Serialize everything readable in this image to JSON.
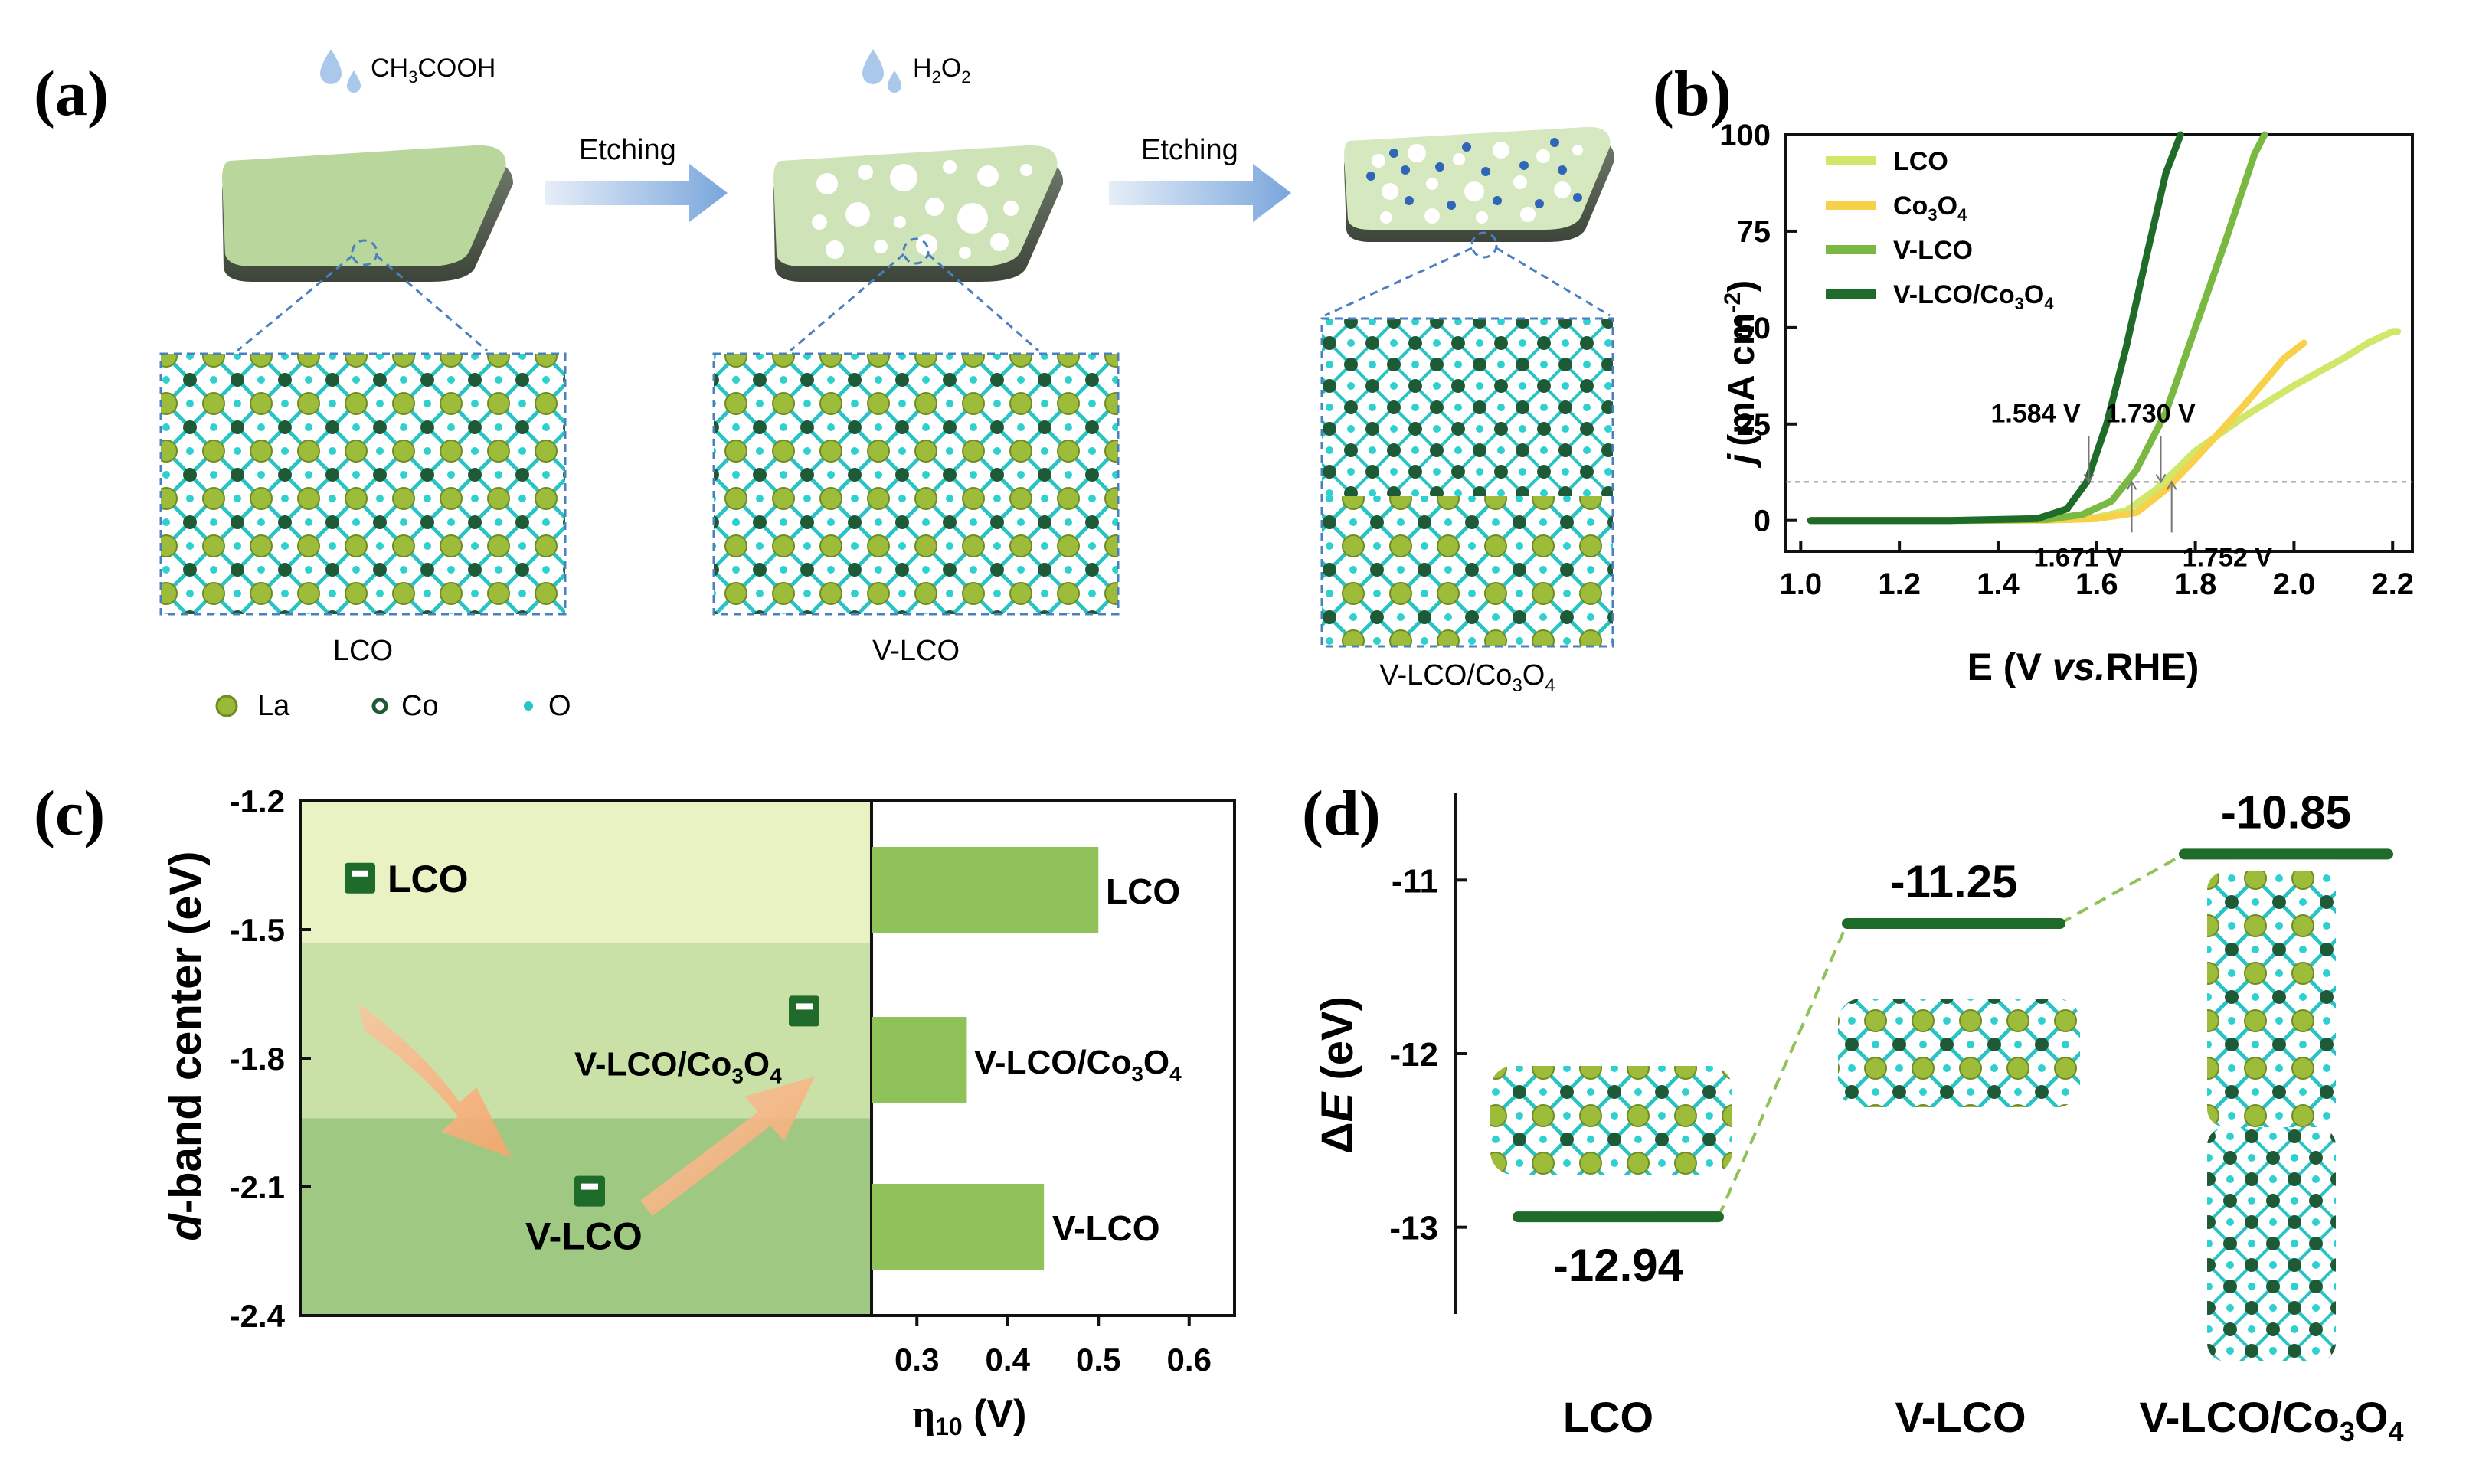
{
  "panels": {
    "a": {
      "letter": "(a)",
      "reagent1": "CH",
      "reagent1_sub": "3",
      "reagent1_rest": "COOH",
      "reagent2": "H",
      "reagent2_sub1": "2",
      "reagent2_mid": "O",
      "reagent2_sub2": "2",
      "arrow1": "Etching",
      "arrow2": "Etching",
      "label1": "LCO",
      "label2": "V-LCO",
      "label3_main": "V-LCO/Co",
      "label3_sub1": "3",
      "label3_mid": "O",
      "label3_sub2": "4",
      "legend": [
        {
          "label": "La",
          "color": "#9ab83a"
        },
        {
          "label": "Co",
          "color": "#1f5a36"
        },
        {
          "label": "O",
          "color": "#26c6c6"
        }
      ]
    },
    "b": {
      "letter": "(b)",
      "ylabel_j": "j",
      "ylabel_rest": "(mA cm",
      "ylabel_sup": "-2",
      "ylabel_end": ")",
      "xlabel_pre": "E (V ",
      "xlabel_it": "vs.",
      "xlabel_post": "RHE)",
      "legend": [
        {
          "label": "LCO",
          "color": "#cfe86a"
        },
        {
          "label": "Co",
          "sub1": "3",
          "mid": "O",
          "sub2": "4",
          "color": "#f7d14a"
        },
        {
          "label": "V-LCO",
          "color": "#79b941"
        },
        {
          "label": "V-LCO/Co",
          "sub1": "3",
          "mid": "O",
          "sub2": "4",
          "color": "#1f6b2a"
        }
      ],
      "annotations": [
        "1.584 V",
        "1.730 V",
        "1.671 V",
        "1.752 V"
      ]
    },
    "c": {
      "letter": "(c)",
      "ylabel_d": "d",
      "ylabel_rest": "-band center (eV)",
      "xlabel": "η",
      "xlabel_sub": "10",
      "xlabel_unit": " (V)",
      "points": [
        {
          "label": "LCO",
          "value": -1.38
        },
        {
          "label_main": "V-LCO/Co",
          "sub1": "3",
          "mid": "O",
          "sub2": "4",
          "value": -1.69
        },
        {
          "label": "V-LCO",
          "value": -2.11
        }
      ],
      "bars": [
        {
          "label": "LCO",
          "value": 0.5
        },
        {
          "label_main": "V-LCO/Co",
          "sub1": "3",
          "mid": "O",
          "sub2": "4",
          "value": 0.355
        },
        {
          "label": "V-LCO",
          "value": 0.44
        }
      ]
    },
    "d": {
      "letter": "(d)",
      "ylabel_delta": "Δ",
      "ylabel_e": "E",
      "ylabel_unit": " (eV)",
      "levels": [
        {
          "value": "-12.94",
          "v": -12.94,
          "label": "LCO"
        },
        {
          "value": "-11.25",
          "v": -11.25,
          "label": "V-LCO"
        },
        {
          "value": "-10.85",
          "v": -10.85,
          "label_main": "V-LCO/Co",
          "sub1": "3",
          "mid": "O",
          "sub2": "4"
        }
      ]
    }
  },
  "chart_data": [
    {
      "type": "line",
      "panel": "b",
      "xlabel": "E (V vs.RHE)",
      "ylabel": "j (mA cm-2)",
      "xlim": [
        0.97,
        2.24
      ],
      "ylim": [
        -8,
        100
      ],
      "xticks": [
        "1.0",
        "1.2",
        "1.4",
        "1.6",
        "1.8",
        "2.0",
        "2.2"
      ],
      "yticks": [
        "0",
        "25",
        "50",
        "75",
        "100"
      ],
      "legend_position": "top-left",
      "series": [
        {
          "name": "LCO",
          "color": "#cfe86a",
          "x": [
            1.02,
            1.3,
            1.5,
            1.6,
            1.66,
            1.72,
            1.8,
            1.9,
            2.0,
            2.1,
            2.15,
            2.2,
            2.21
          ],
          "y": [
            0,
            0,
            0.2,
            0.8,
            2.5,
            8,
            18,
            27,
            35,
            42,
            46,
            49,
            49
          ]
        },
        {
          "name": "Co3O4",
          "color": "#f7d14a",
          "x": [
            1.02,
            1.3,
            1.5,
            1.6,
            1.68,
            1.74,
            1.8,
            1.9,
            1.98,
            2.02
          ],
          "y": [
            0,
            0,
            0.1,
            0.5,
            2,
            8,
            16,
            30,
            42,
            46
          ]
        },
        {
          "name": "V-LCO",
          "color": "#79b941",
          "x": [
            1.02,
            1.3,
            1.5,
            1.57,
            1.63,
            1.68,
            1.74,
            1.8,
            1.86,
            1.92,
            1.94
          ],
          "y": [
            0,
            0,
            0.3,
            1.5,
            5,
            13,
            28,
            50,
            72,
            95,
            100
          ]
        },
        {
          "name": "V-LCO/Co3O4",
          "color": "#1f6b2a",
          "x": [
            1.02,
            1.3,
            1.48,
            1.54,
            1.58,
            1.62,
            1.66,
            1.7,
            1.74,
            1.77
          ],
          "y": [
            0,
            0,
            0.5,
            3,
            10,
            25,
            45,
            68,
            90,
            100
          ]
        }
      ],
      "annotations": [
        {
          "text": "1.584 V",
          "x": 1.584,
          "y": 10
        },
        {
          "text": "1.730 V",
          "x": 1.73,
          "y": 10
        },
        {
          "text": "1.671 V",
          "x": 1.671,
          "y": 10
        },
        {
          "text": "1.752 V",
          "x": 1.752,
          "y": 10
        }
      ]
    },
    {
      "type": "scatter",
      "panel": "c-left",
      "ylabel": "d-band center (eV)",
      "ylim": [
        -2.4,
        -1.2
      ],
      "yticks": [
        "-1.2",
        "-1.5",
        "-1.8",
        "-2.1",
        "-2.4"
      ],
      "points": [
        {
          "label": "LCO",
          "y": -1.38
        },
        {
          "label": "V-LCO/Co3O4",
          "y": -1.69
        },
        {
          "label": "V-LCO",
          "y": -2.11
        }
      ]
    },
    {
      "type": "bar",
      "panel": "c-right",
      "xlabel": "η10 (V)",
      "xlim": [
        0.25,
        0.65
      ],
      "xticks": [
        "0.3",
        "0.4",
        "0.5",
        "0.6"
      ],
      "categories": [
        "LCO",
        "V-LCO/Co3O4",
        "V-LCO"
      ],
      "values": [
        0.5,
        0.355,
        0.44
      ]
    },
    {
      "type": "line",
      "panel": "d",
      "ylabel": "ΔE (eV)",
      "ylim": [
        -13.5,
        -10.5
      ],
      "yticks": [
        "-11",
        "-12",
        "-13"
      ],
      "categories": [
        "LCO",
        "V-LCO",
        "V-LCO/Co3O4"
      ],
      "values": [
        -12.94,
        -11.25,
        -10.85
      ]
    }
  ]
}
